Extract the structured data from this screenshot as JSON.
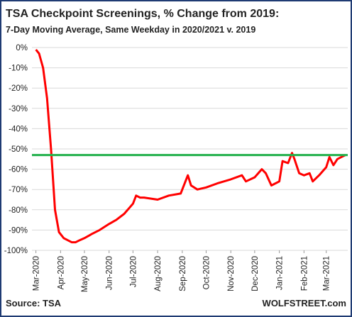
{
  "chart_data": {
    "type": "line",
    "title": "TSA Checkpoint Screenings, % Change from 2019:",
    "subtitle": "7-Day Moving Average, Same Weekday in 2020/2021 v. 2019",
    "source": "Source: TSA",
    "watermark": "WOLFSTREET.com",
    "color": "#ff0000",
    "reference_line": -53,
    "reference_color": "#22b14c",
    "grid": true,
    "x": [
      0,
      4,
      9,
      14,
      19,
      24,
      29,
      35,
      40,
      45,
      50,
      55,
      61,
      70,
      80,
      92,
      101,
      111,
      122,
      126,
      131,
      136,
      153,
      167,
      182,
      188,
      191,
      195,
      203,
      214,
      228,
      245,
      259,
      264,
      275,
      284,
      289,
      296,
      306,
      310,
      317,
      322,
      325,
      331,
      337,
      344,
      348,
      356,
      365,
      369,
      374,
      379,
      384,
      389
    ],
    "values": [
      -1,
      -3,
      -10,
      -25,
      -50,
      -80,
      -91,
      -94,
      -95,
      -96,
      -96,
      -95,
      -94,
      -92,
      -90,
      -87,
      -85,
      -82,
      -77,
      -73,
      -74,
      -74,
      -75,
      -73,
      -72,
      -66,
      -63,
      -68,
      -70,
      -69,
      -67,
      -65,
      -63,
      -66,
      -64,
      -60,
      -62,
      -68,
      -66,
      -56,
      -57,
      -52,
      -55,
      -62,
      -63,
      -62,
      -66,
      -63,
      -59,
      -54,
      -58,
      -55,
      -54,
      -53
    ],
    "xlim": [
      -5,
      392
    ],
    "xticks": [
      {
        "value": 0,
        "label": "Mar-2020"
      },
      {
        "value": 31,
        "label": "Apr-2020"
      },
      {
        "value": 61,
        "label": "May-2020"
      },
      {
        "value": 92,
        "label": "Jun-2020"
      },
      {
        "value": 122,
        "label": "Jul-2020"
      },
      {
        "value": 153,
        "label": "Aug-2020"
      },
      {
        "value": 184,
        "label": "Sep-2020"
      },
      {
        "value": 214,
        "label": "Oct-2020"
      },
      {
        "value": 245,
        "label": "Nov-2020"
      },
      {
        "value": 275,
        "label": "Dec-2020"
      },
      {
        "value": 306,
        "label": "Jan-2021"
      },
      {
        "value": 337,
        "label": "Feb-2021"
      },
      {
        "value": 365,
        "label": "Mar-2021"
      }
    ],
    "ylim": [
      -100,
      0
    ],
    "yticks": [
      {
        "value": 0,
        "label": "0%"
      },
      {
        "value": -10,
        "label": "-10%"
      },
      {
        "value": -20,
        "label": "-20%"
      },
      {
        "value": -30,
        "label": "-30%"
      },
      {
        "value": -40,
        "label": "-40%"
      },
      {
        "value": -50,
        "label": "-50%"
      },
      {
        "value": -60,
        "label": "-60%"
      },
      {
        "value": -70,
        "label": "-70%"
      },
      {
        "value": -80,
        "label": "-80%"
      },
      {
        "value": -90,
        "label": "-90%"
      },
      {
        "value": -100,
        "label": "-100%"
      }
    ]
  }
}
